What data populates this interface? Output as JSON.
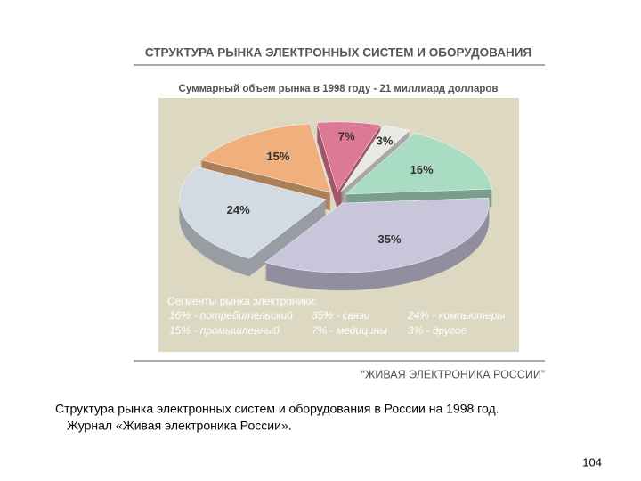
{
  "chart_data": {
    "type": "pie",
    "title": "СТРУКТУРА РЫНКА ЭЛЕКТРОННЫХ СИСТЕМ И ОБОРУДОВАНИЯ",
    "subtitle": "Суммарный объем рынка в 1998 году - 21 миллиард долларов",
    "values": [
      16,
      35,
      24,
      15,
      7,
      3
    ],
    "value_labels": [
      "16%",
      "35%",
      "24%",
      "15%",
      "7%",
      "3%"
    ],
    "colors": [
      "#a9dcc2",
      "#c9c5da",
      "#d2dae2",
      "#efb07e",
      "#de7897",
      "#e9e9e6"
    ],
    "legend": {
      "title": "Сегменты рынка электроники:",
      "entries": [
        "16% - потребительский",
        "35% - связи",
        "24% - компьютеры",
        "15% - промышленный",
        "7% - медицины",
        "3% - другое"
      ]
    },
    "source": "“ЖИВАЯ ЭЛЕКТРОНИКА РОССИИ”"
  },
  "caption": [
    "Структура рынка электронных систем и оборудования в России на 1998 год.",
    "Журнал «Живая электроника России»."
  ],
  "page_number": "104"
}
